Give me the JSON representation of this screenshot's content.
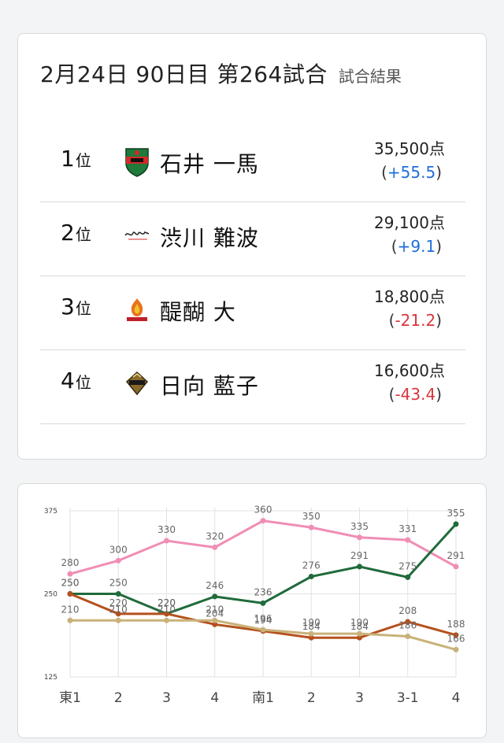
{
  "header": {
    "title": "2月24日 90日目 第264試合",
    "subtitle": "試合結果"
  },
  "standings": [
    {
      "rank": "1",
      "rank_unit": "位",
      "name": "石井 一馬",
      "score": "35,500点",
      "delta": "+55.5",
      "delta_sign": "positive",
      "team_icon": "jets-shield-icon"
    },
    {
      "rank": "2",
      "rank_unit": "位",
      "name": "渋川 難波",
      "score": "29,100点",
      "delta": "+9.1",
      "delta_sign": "positive",
      "team_icon": "script-logo-icon"
    },
    {
      "rank": "3",
      "rank_unit": "位",
      "name": "醍醐 大",
      "score": "18,800点",
      "delta": "-21.2",
      "delta_sign": "negative",
      "team_icon": "phoenix-flame-icon"
    },
    {
      "rank": "4",
      "rank_unit": "位",
      "name": "日向 藍子",
      "score": "16,600点",
      "delta": "-43.4",
      "delta_sign": "negative",
      "team_icon": "raiders-crest-icon"
    }
  ],
  "delta_open": "(",
  "delta_close": ")",
  "colors": {
    "positive": "#1e6fd9",
    "negative": "#d9363e"
  },
  "chart_data": {
    "type": "line",
    "categories": [
      "東1",
      "2",
      "3",
      "4",
      "南1",
      "2",
      "3",
      "3-1",
      "4"
    ],
    "ylim": [
      125,
      375
    ],
    "yticks": [
      125,
      250,
      375
    ],
    "grid": true,
    "series": [
      {
        "color": "#f08db5",
        "values": [
          280,
          300,
          330,
          320,
          360,
          350,
          335,
          331,
          291
        ]
      },
      {
        "color": "#1f6b3a",
        "values": [
          250,
          250,
          220,
          246,
          236,
          276,
          291,
          275,
          355
        ]
      },
      {
        "color": "#b5501c",
        "values": [
          250,
          220,
          220,
          204,
          194,
          184,
          184,
          208,
          188
        ]
      },
      {
        "color": "#c9b27a",
        "values": [
          210,
          210,
          210,
          210,
          196,
          190,
          190,
          186,
          166
        ]
      }
    ]
  }
}
